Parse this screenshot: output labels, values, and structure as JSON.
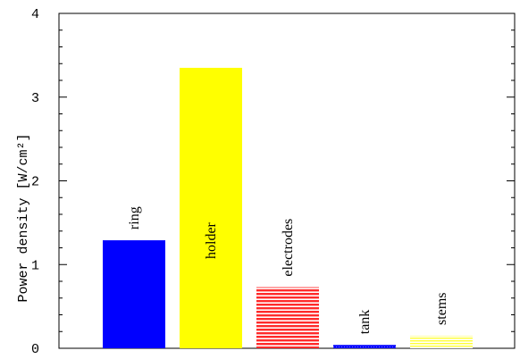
{
  "chart_data": {
    "type": "bar",
    "categories": [
      "ring",
      "holder",
      "electrodes",
      "tank",
      "stems"
    ],
    "values": [
      1.29,
      3.35,
      0.73,
      0.04,
      0.15
    ],
    "bar_colors": [
      "#0000ff",
      "#ffff00",
      "#ff0000",
      "#0000ff",
      "#ffff00"
    ],
    "bar_fill_styles": [
      "solid",
      "solid",
      "horizontal-hatch",
      "dotted",
      "horizontal-hatch"
    ],
    "ylabel": "Power density [W/cm²]",
    "xlabel": "",
    "ylim": [
      0,
      4
    ],
    "yticks": [
      "0",
      "1",
      "2",
      "3",
      "4"
    ],
    "grid": false,
    "legend": "none"
  }
}
